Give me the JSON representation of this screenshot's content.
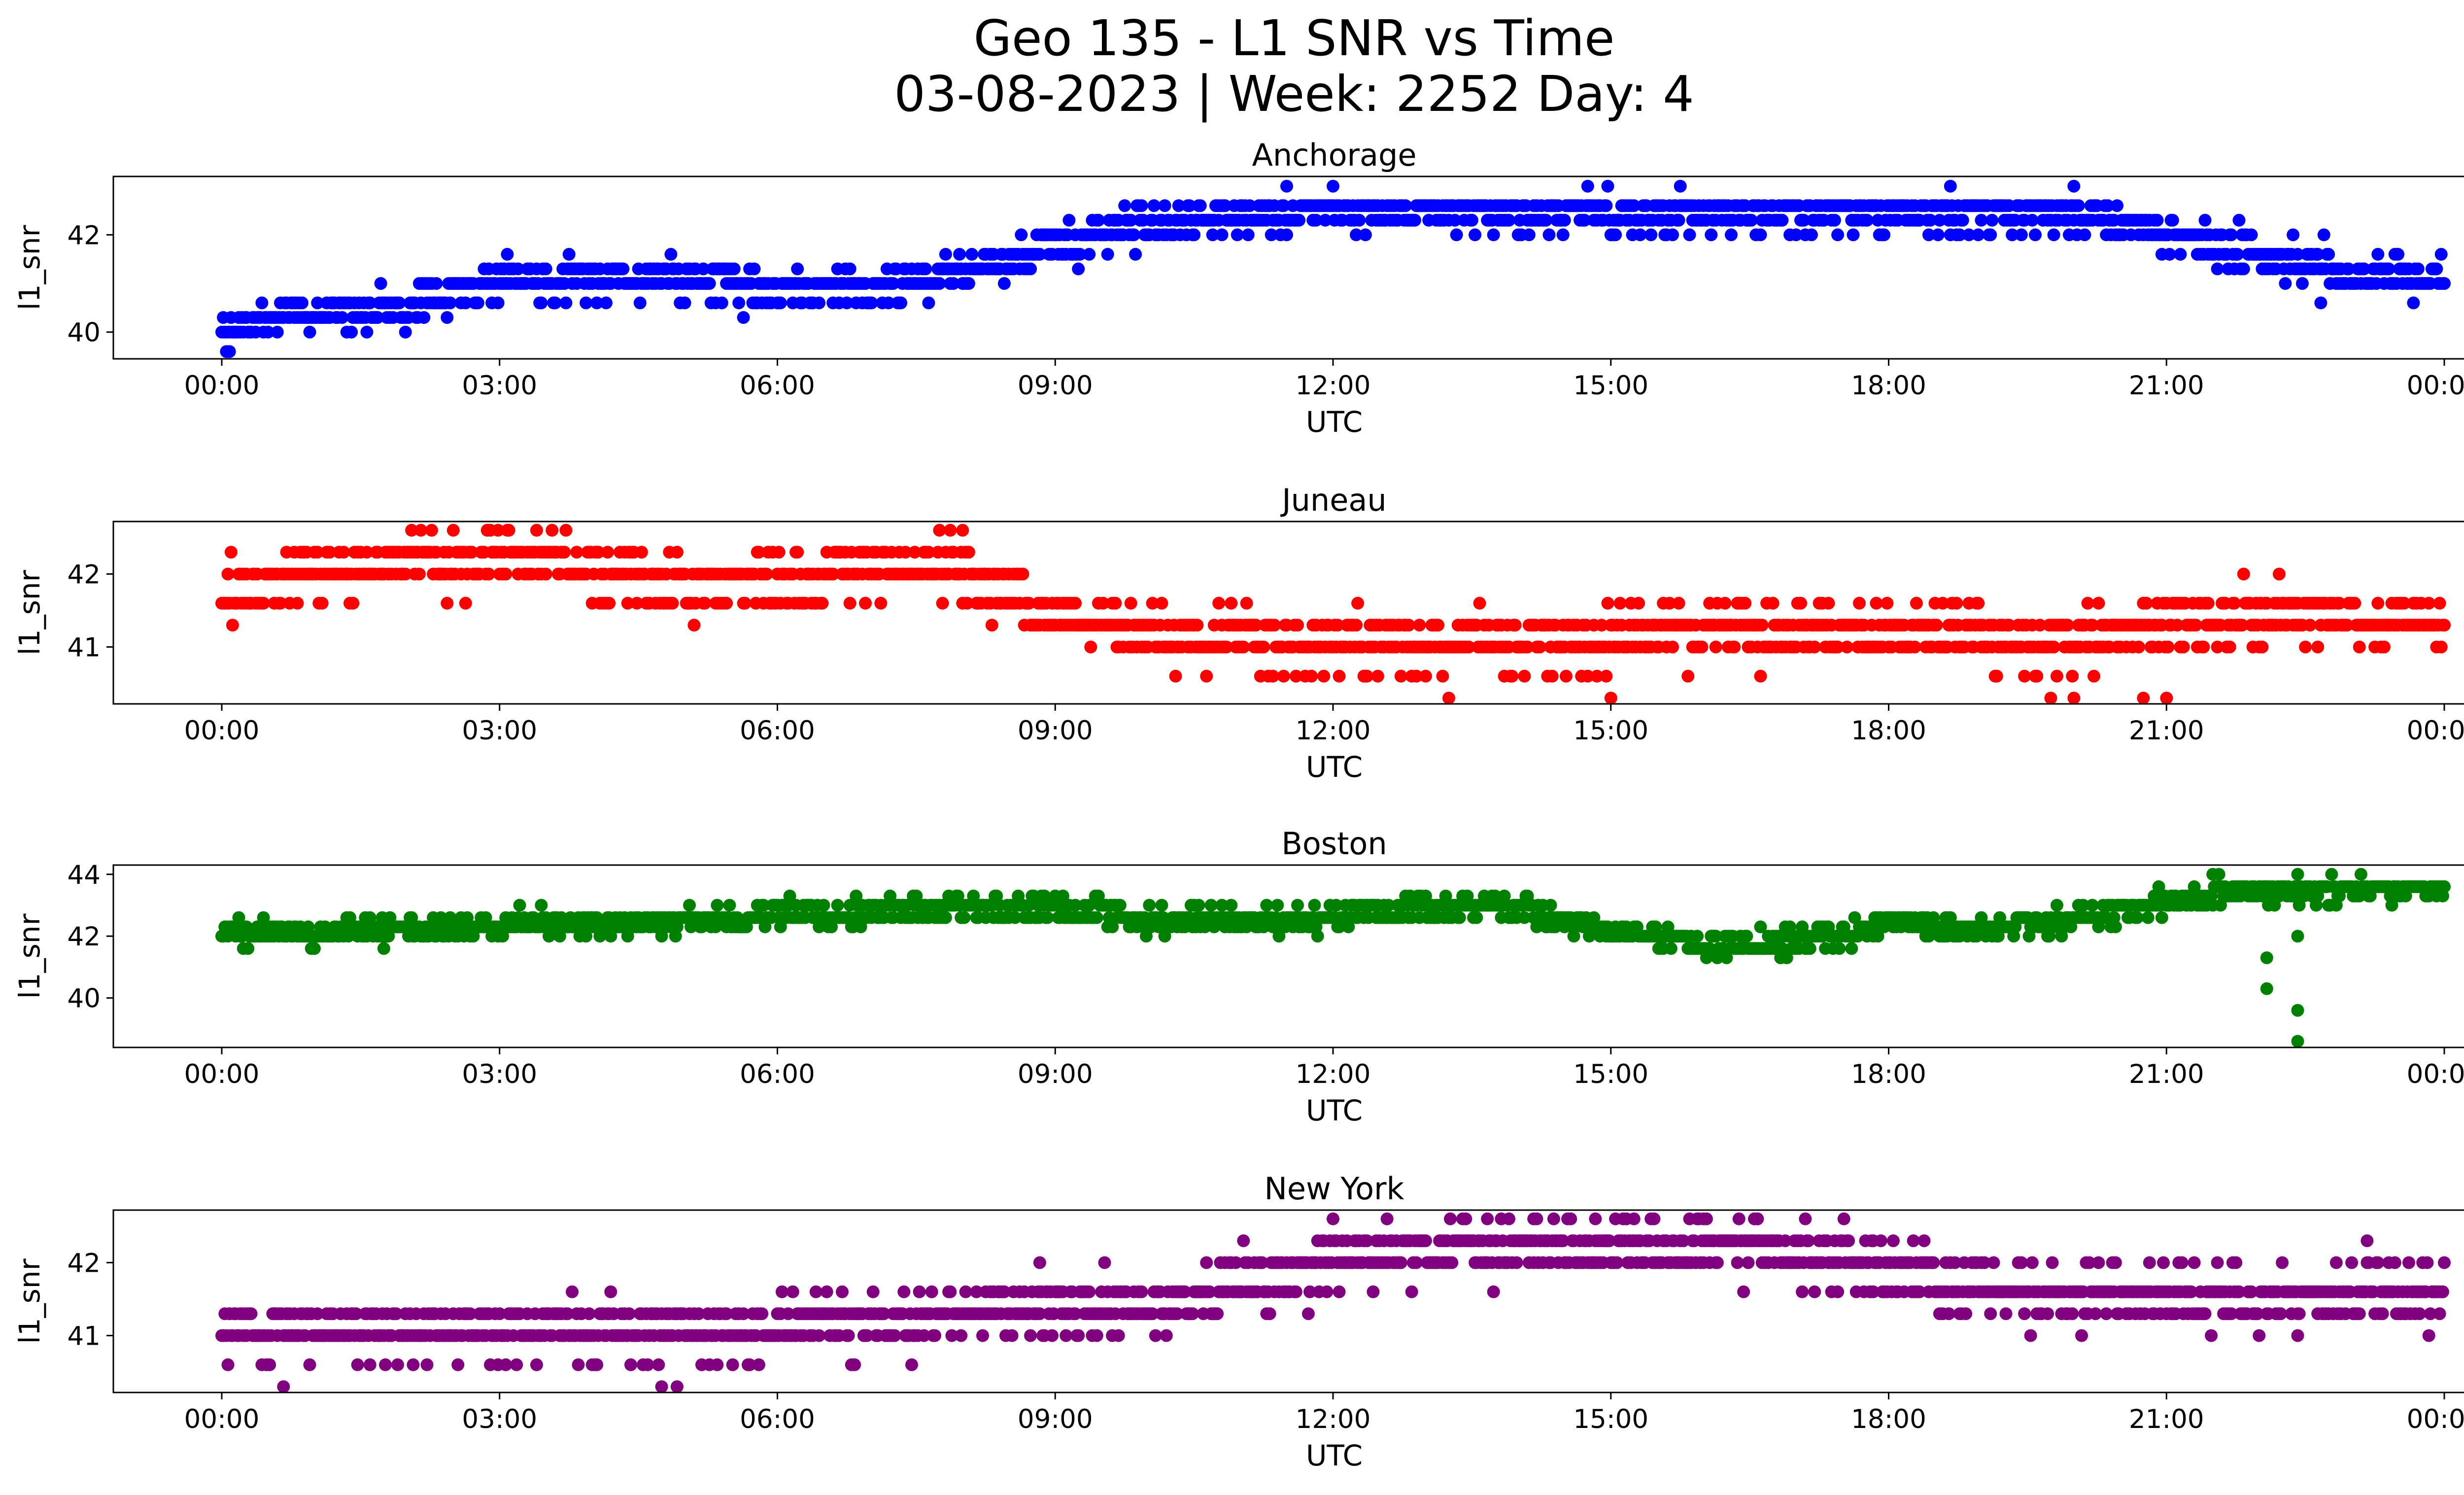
{
  "figure": {
    "title_line1": "Geo 135 - L1 SNR vs Time",
    "title_line2": "03-08-2023 | Week: 2252 Day: 4"
  },
  "chart_data": [
    {
      "type": "scatter",
      "title": "Anchorage",
      "xlabel": "UTC",
      "ylabel": "l1_snr",
      "color": "#0000ff",
      "xlim": [
        "00:00",
        "00:00"
      ],
      "x_ticks": [
        "00:00",
        "03:00",
        "06:00",
        "09:00",
        "12:00",
        "15:00",
        "18:00",
        "21:00",
        "00:00"
      ],
      "ylim": [
        39.45,
        43.2
      ],
      "y_ticks": [
        40,
        42
      ],
      "snr_levels": [
        39.6,
        40.0,
        40.3,
        40.6,
        41.0,
        41.3,
        41.6,
        42.0,
        42.3,
        42.6,
        43.0
      ],
      "trend_hours": [
        0,
        1,
        2,
        3,
        4,
        5,
        6,
        7,
        8,
        9,
        10,
        11,
        12,
        13,
        14,
        15,
        16,
        17,
        18,
        19,
        20,
        21,
        22,
        23,
        24
      ],
      "trend_snr": [
        40.2,
        40.4,
        40.6,
        41.0,
        41.1,
        41.0,
        40.9,
        40.9,
        41.2,
        41.8,
        42.2,
        42.4,
        42.5,
        42.5,
        42.5,
        42.5,
        42.5,
        42.5,
        42.5,
        42.5,
        42.5,
        42.0,
        41.6,
        41.2,
        41.0
      ],
      "outliers": [
        {
          "x": "00:05",
          "y": 39.6
        },
        {
          "x": "11:30",
          "y": 43.0
        },
        {
          "x": "12:00",
          "y": 43.0
        },
        {
          "x": "14:45",
          "y": 43.0
        },
        {
          "x": "15:45",
          "y": 43.0
        },
        {
          "x": "18:40",
          "y": 43.0
        },
        {
          "x": "20:00",
          "y": 43.0
        },
        {
          "x": "03:05",
          "y": 41.6
        },
        {
          "x": "22:40",
          "y": 40.6
        }
      ]
    },
    {
      "type": "scatter",
      "title": "Juneau",
      "xlabel": "UTC",
      "ylabel": "l1_snr",
      "color": "#ff0000",
      "xlim": [
        "00:00",
        "00:00"
      ],
      "x_ticks": [
        "00:00",
        "03:00",
        "06:00",
        "09:00",
        "12:00",
        "15:00",
        "18:00",
        "21:00",
        "00:00"
      ],
      "ylim": [
        40.22,
        42.72
      ],
      "y_ticks": [
        41,
        42
      ],
      "snr_levels": [
        40.3,
        40.6,
        41.0,
        41.3,
        41.6,
        42.0,
        42.3,
        42.6
      ],
      "trend_hours": [
        0,
        1,
        2,
        3,
        4,
        5,
        6,
        7,
        8,
        9,
        10,
        11,
        12,
        13,
        14,
        15,
        16,
        17,
        18,
        19,
        20,
        21,
        22,
        23,
        24
      ],
      "trend_snr": [
        41.8,
        42.0,
        42.2,
        42.3,
        42.1,
        41.8,
        41.9,
        42.0,
        42.0,
        41.5,
        41.2,
        41.1,
        41.0,
        41.0,
        41.0,
        41.1,
        41.2,
        41.2,
        41.2,
        41.1,
        41.1,
        41.3,
        41.4,
        41.4,
        41.4
      ],
      "outliers": [
        {
          "x": "13:15",
          "y": 40.3
        },
        {
          "x": "15:00",
          "y": 40.3
        },
        {
          "x": "19:45",
          "y": 40.3
        },
        {
          "x": "20:00",
          "y": 40.3
        },
        {
          "x": "20:45",
          "y": 40.3
        },
        {
          "x": "21:00",
          "y": 40.3
        },
        {
          "x": "08:00",
          "y": 42.6
        },
        {
          "x": "09:40",
          "y": 41.0
        }
      ]
    },
    {
      "type": "scatter",
      "title": "Boston",
      "xlabel": "UTC",
      "ylabel": "l1_snr",
      "color": "#008000",
      "xlim": [
        "00:00",
        "00:00"
      ],
      "x_ticks": [
        "00:00",
        "03:00",
        "06:00",
        "09:00",
        "12:00",
        "15:00",
        "18:00",
        "21:00",
        "00:00"
      ],
      "ylim": [
        38.4,
        44.3
      ],
      "y_ticks": [
        40,
        42,
        44
      ],
      "snr_levels": [
        41.3,
        41.6,
        42.0,
        42.3,
        42.6,
        43.0,
        43.3,
        43.6,
        44.0
      ],
      "trend_hours": [
        0,
        1,
        2,
        3,
        4,
        5,
        6,
        7,
        8,
        9,
        10,
        11,
        12,
        13,
        14,
        15,
        16,
        17,
        18,
        19,
        20,
        21,
        22,
        23,
        24
      ],
      "trend_snr": [
        42.0,
        42.1,
        42.3,
        42.3,
        42.4,
        42.5,
        42.7,
        42.8,
        42.9,
        42.8,
        42.6,
        42.6,
        42.6,
        42.9,
        42.9,
        42.2,
        41.7,
        41.8,
        42.4,
        42.2,
        42.6,
        43.1,
        43.5,
        43.5,
        43.5
      ],
      "outliers": [
        {
          "x": "22:05",
          "y": 41.3
        },
        {
          "x": "22:05",
          "y": 40.3
        },
        {
          "x": "22:25",
          "y": 42.0
        },
        {
          "x": "22:25",
          "y": 39.6
        },
        {
          "x": "22:25",
          "y": 38.6
        },
        {
          "x": "21:30",
          "y": 44.0
        },
        {
          "x": "22:25",
          "y": 44.0
        },
        {
          "x": "01:45",
          "y": 41.6
        }
      ]
    },
    {
      "type": "scatter",
      "title": "New York",
      "xlabel": "UTC",
      "ylabel": "l1_snr",
      "color": "#800080",
      "xlim": [
        "00:00",
        "00:00"
      ],
      "x_ticks": [
        "00:00",
        "03:00",
        "06:00",
        "09:00",
        "12:00",
        "15:00",
        "18:00",
        "21:00",
        "00:00"
      ],
      "ylim": [
        40.22,
        42.72
      ],
      "y_ticks": [
        41,
        42
      ],
      "snr_levels": [
        40.3,
        40.6,
        41.0,
        41.3,
        41.6,
        42.0,
        42.3,
        42.6
      ],
      "trend_hours": [
        0,
        1,
        2,
        3,
        4,
        5,
        6,
        7,
        8,
        9,
        10,
        11,
        12,
        13,
        14,
        15,
        16,
        17,
        18,
        19,
        20,
        21,
        22,
        23,
        24
      ],
      "trend_snr": [
        41.0,
        41.0,
        41.0,
        41.0,
        41.0,
        41.0,
        41.1,
        41.2,
        41.3,
        41.4,
        41.4,
        41.7,
        42.0,
        42.2,
        42.3,
        42.3,
        42.3,
        42.1,
        41.9,
        41.7,
        41.6,
        41.6,
        41.6,
        41.6,
        41.6
      ],
      "outliers": [
        {
          "x": "00:40",
          "y": 40.3
        },
        {
          "x": "04:45",
          "y": 40.3
        },
        {
          "x": "04:55",
          "y": 40.3
        },
        {
          "x": "13:40",
          "y": 42.6
        },
        {
          "x": "14:10",
          "y": 42.6
        },
        {
          "x": "14:50",
          "y": 42.6
        },
        {
          "x": "16:00",
          "y": 42.6
        },
        {
          "x": "16:35",
          "y": 42.6
        },
        {
          "x": "20:05",
          "y": 41.0
        },
        {
          "x": "22:25",
          "y": 41.0
        },
        {
          "x": "23:10",
          "y": 42.3
        },
        {
          "x": "08:50",
          "y": 42.0
        },
        {
          "x": "17:50",
          "y": 42.3
        }
      ]
    }
  ]
}
